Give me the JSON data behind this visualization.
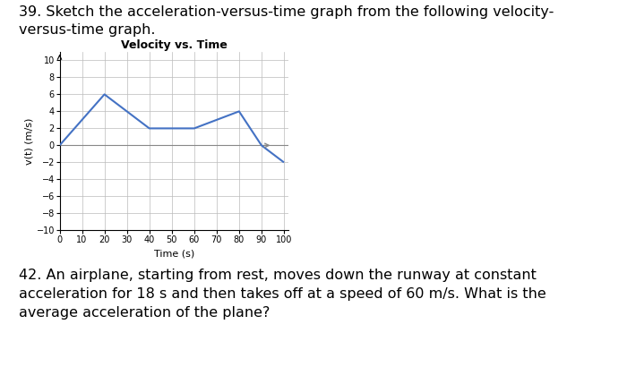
{
  "title": "Velocity vs. Time",
  "xlabel": "Time (s)",
  "ylabel": "v(t) (m/s)",
  "xlim": [
    0,
    102
  ],
  "ylim": [
    -10,
    11
  ],
  "xticks": [
    0,
    10,
    20,
    30,
    40,
    50,
    60,
    70,
    80,
    90,
    100
  ],
  "yticks": [
    -10,
    -8,
    -6,
    -4,
    -2,
    0,
    2,
    4,
    6,
    8,
    10
  ],
  "line_color": "#4472c4",
  "line_x": [
    0,
    20,
    40,
    50,
    60,
    80,
    90,
    100
  ],
  "line_y": [
    0,
    6,
    2,
    2,
    2,
    4,
    0,
    -2
  ],
  "background_color": "#ffffff",
  "grid_color": "#bbbbbb",
  "q39_text": "39. Sketch the acceleration-versus-time graph from the following velocity-\nversus-time graph.",
  "q42_text": "42. An airplane, starting from rest, moves down the runway at constant\nacceleration for 18 s and then takes off at a speed of 60 m/s. What is the\naverage acceleration of the plane?",
  "text_fontsize": 11.5,
  "title_fontsize": 9,
  "axis_fontsize": 8,
  "tick_fontsize": 7
}
